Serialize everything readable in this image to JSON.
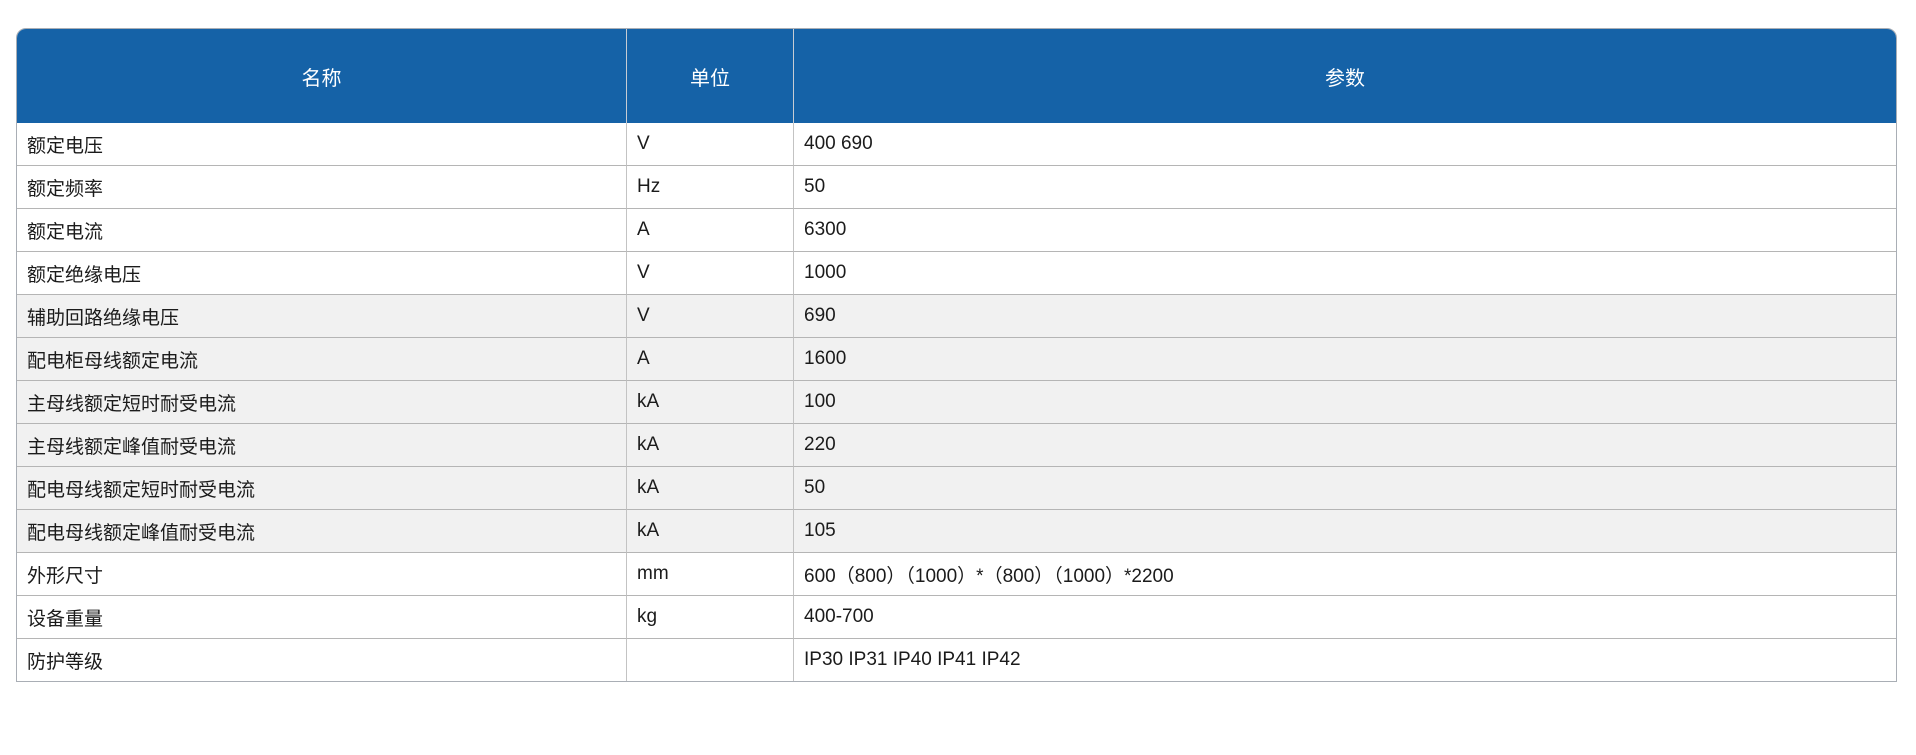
{
  "page": {
    "background": "#ffffff"
  },
  "table": {
    "header": {
      "background": "#1562a7",
      "text_color": "#ffffff",
      "columns": [
        "名称",
        "单位",
        "参数"
      ]
    },
    "shaded_row_background": "#f1f1f1",
    "rows": [
      {
        "name": "额定电压",
        "unit": "V",
        "value": "400 690",
        "shaded": false
      },
      {
        "name": "额定频率",
        "unit": "Hz",
        "value": "50",
        "shaded": false
      },
      {
        "name": "额定电流",
        "unit": "A",
        "value": "6300",
        "shaded": false
      },
      {
        "name": "额定绝缘电压",
        "unit": "V",
        "value": "1000",
        "shaded": false
      },
      {
        "name": "辅助回路绝缘电压",
        "unit": "V",
        "value": "690",
        "shaded": true
      },
      {
        "name": "配电柜母线额定电流",
        "unit": "A",
        "value": "1600",
        "shaded": true
      },
      {
        "name": "主母线额定短时耐受电流",
        "unit": "kA",
        "value": "100",
        "shaded": true
      },
      {
        "name": "主母线额定峰值耐受电流",
        "unit": "kA",
        "value": "220",
        "shaded": true
      },
      {
        "name": "配电母线额定短时耐受电流",
        "unit": "kA",
        "value": "50",
        "shaded": true
      },
      {
        "name": "配电母线额定峰值耐受电流",
        "unit": "kA",
        "value": "105",
        "shaded": true
      },
      {
        "name": "外形尺寸",
        "unit": "mm",
        "value": "600（800）（1000）*（800）（1000）*2200",
        "shaded": false
      },
      {
        "name": "设备重量",
        "unit": "kg",
        "value": "400-700",
        "shaded": false
      },
      {
        "name": "防护等级",
        "unit": "",
        "value": "IP30 IP31 IP40 IP41 IP42",
        "shaded": false
      }
    ]
  }
}
